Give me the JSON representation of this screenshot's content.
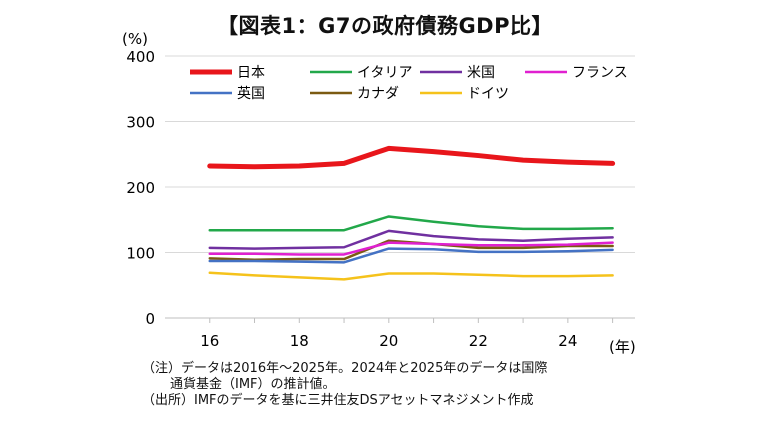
{
  "title": "【図表1：G7の政府債務GDP比】",
  "y_unit": "(%)",
  "x_unit": "(年)",
  "notes": [
    "（注）データは2016年～2025年。2024年と2025年のデータは国際",
    "通貨基金（IMF）の推計値。",
    "（出所）IMFのデータを基に三井住友DSアセットマネジメント作成"
  ],
  "chart_data": {
    "type": "line",
    "title": "【図表1：G7の政府債務GDP比】",
    "xlabel": "(年)",
    "ylabel": "(%)",
    "x": [
      16,
      17,
      18,
      19,
      20,
      21,
      22,
      23,
      24,
      25
    ],
    "x_ticks": [
      16,
      18,
      20,
      22,
      24
    ],
    "y_ticks": [
      0,
      100,
      200,
      300,
      400
    ],
    "xlim": [
      15,
      25.5
    ],
    "ylim": [
      0,
      400
    ],
    "grid": "horizontal",
    "legend_position": "top",
    "series": [
      {
        "name": "日本",
        "color": "#e8161b",
        "width": 5,
        "values": [
          232,
          231,
          232,
          236,
          259,
          254,
          248,
          241,
          238,
          236
        ]
      },
      {
        "name": "イタリア",
        "color": "#22a84a",
        "width": 2.5,
        "values": [
          134,
          134,
          134,
          134,
          155,
          147,
          140,
          136,
          136,
          137
        ]
      },
      {
        "name": "米国",
        "color": "#7030a0",
        "width": 2.5,
        "values": [
          107,
          106,
          107,
          108,
          133,
          125,
          120,
          118,
          121,
          123
        ]
      },
      {
        "name": "フランス",
        "color": "#e020d0",
        "width": 2.5,
        "values": [
          98,
          98,
          97,
          97,
          115,
          113,
          111,
          111,
          112,
          115
        ]
      },
      {
        "name": "英国",
        "color": "#4472c4",
        "width": 2.5,
        "values": [
          87,
          87,
          86,
          85,
          106,
          105,
          101,
          101,
          102,
          104
        ]
      },
      {
        "name": "カナダ",
        "color": "#7b5a12",
        "width": 2.5,
        "values": [
          91,
          89,
          90,
          90,
          118,
          113,
          107,
          107,
          110,
          110
        ]
      },
      {
        "name": "ドイツ",
        "color": "#f5c21b",
        "width": 2.5,
        "values": [
          69,
          65,
          62,
          59,
          68,
          68,
          66,
          64,
          64,
          65
        ]
      }
    ]
  }
}
